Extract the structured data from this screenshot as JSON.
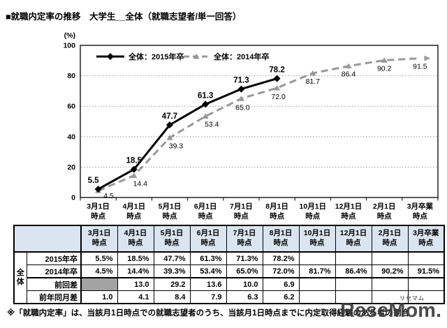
{
  "page": {
    "title": "■就職内定率の推移　大学生__全体（就職志望者/単一回答）",
    "footnote": "※「就職内定率」は、当該月1日時点での就職志望者のうち、当該月1日時点までに内定取得経験のある者の割合",
    "watermark": {
      "text": "ReseMom.",
      "ruby": "リセマム"
    }
  },
  "chart_data": {
    "type": "line",
    "unit_label": "(%)",
    "categories": [
      "3月1日\n時点",
      "4月1日\n時点",
      "5月1日\n時点",
      "6月1日\n時点",
      "7月1日\n時点",
      "8月1日\n時点",
      "10月1日\n時点",
      "12月1日\n時点",
      "2月1日\n時点",
      "3月卒業\n時点"
    ],
    "series": [
      {
        "name": "全体：2015年卒",
        "color": "#000000",
        "line_style": "solid",
        "marker": "diamond",
        "values": [
          5.5,
          18.5,
          47.7,
          61.3,
          71.3,
          78.2,
          null,
          null,
          null,
          null
        ]
      },
      {
        "name": "全体：2014年卒",
        "color": "#999999",
        "line_style": "dashed",
        "marker": "triangle",
        "values": [
          4.5,
          14.4,
          39.3,
          53.4,
          65.0,
          72.0,
          81.7,
          86.4,
          90.2,
          91.5
        ]
      }
    ],
    "ylim": [
      0,
      100
    ],
    "yticks": [
      0,
      20,
      40,
      60,
      80,
      100
    ],
    "grid": true,
    "legend_position": "top-left-inside"
  },
  "table": {
    "group_label": "全体",
    "col_headers": [
      "3月1日\n時点",
      "4月1日\n時点",
      "5月1日\n時点",
      "6月1日\n時点",
      "7月1日\n時点",
      "8月1日\n時点",
      "10月1日\n時点",
      "12月1日\n時点",
      "2月1日\n時点",
      "3月卒業\n時点"
    ],
    "rows": [
      {
        "label": "2015年卒",
        "cells": [
          "5.5%",
          "18.5%",
          "47.7%",
          "61.3%",
          "71.3%",
          "78.2%",
          "",
          "",
          "",
          ""
        ]
      },
      {
        "label": "2014年卒",
        "cells": [
          "4.5%",
          "14.4%",
          "39.3%",
          "53.4%",
          "65.0%",
          "72.0%",
          "81.7%",
          "86.4%",
          "90.2%",
          "91.5%"
        ]
      },
      {
        "label": "前回差",
        "cells": [
          "",
          "13.0",
          "29.2",
          "13.6",
          "10.0",
          "6.9",
          "",
          "",
          "",
          ""
        ],
        "gray_first_cell": true
      },
      {
        "label": "前年同月差",
        "cells": [
          "1.0",
          "4.1",
          "8.4",
          "7.9",
          "6.3",
          "6.2",
          "",
          "",
          "",
          ""
        ]
      }
    ]
  }
}
